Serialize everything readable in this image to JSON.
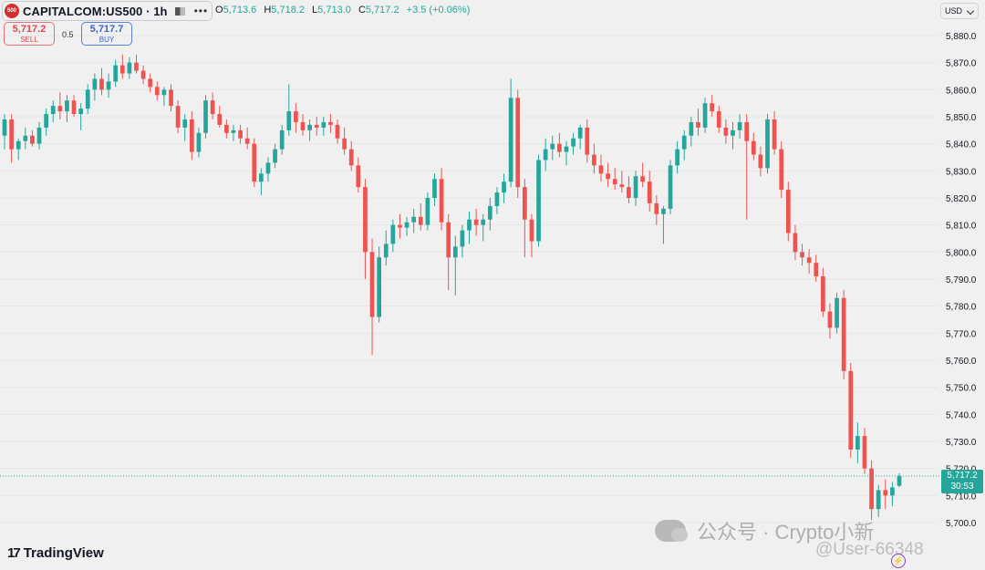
{
  "header": {
    "logo_text": "500",
    "symbol": "CAPITALCOM:US500 · 1h",
    "more": "•••",
    "ohlc": {
      "o_label": "O",
      "o": "5,713.6",
      "h_label": "H",
      "h": "5,718.2",
      "l_label": "L",
      "l": "5,713.0",
      "c_label": "C",
      "c": "5,717.2",
      "change": "+3.5 (+0.06%)"
    },
    "currency": "USD"
  },
  "trade": {
    "sell_price": "5,717.2",
    "sell_label": "SELL",
    "spread": "0.5",
    "buy_price": "5,717.7",
    "buy_label": "BUY"
  },
  "last_price": {
    "price": "5,717.2",
    "countdown": "30:53"
  },
  "branding": {
    "tradingview": "TradingView",
    "watermark": "公众号 · Crypto小新",
    "watermark2": "@User-66348"
  },
  "colors": {
    "up": "#26a69a",
    "down": "#ef5350",
    "background": "#f0f0f0",
    "marker": "#2962ff",
    "lightning": "#8e44ad"
  },
  "chart_data": {
    "type": "candlestick",
    "timeframe": "1h",
    "symbol": "CAPITALCOM:US500",
    "ylim": [
      5695,
      5885
    ],
    "y_ticks": [
      5700,
      5710,
      5720,
      5730,
      5740,
      5750,
      5760,
      5770,
      5780,
      5790,
      5800,
      5810,
      5820,
      5830,
      5840,
      5850,
      5860,
      5870,
      5880
    ],
    "y_tick_labels": [
      "5,700.0",
      "5,710.0",
      "5,720.0",
      "5,730.0",
      "5,740.0",
      "5,750.0",
      "5,760.0",
      "5,770.0",
      "5,780.0",
      "5,790.0",
      "5,800.0",
      "5,810.0",
      "5,820.0",
      "5,830.0",
      "5,840.0",
      "5,850.0",
      "5,860.0",
      "5,870.0",
      "5,880.0"
    ],
    "last_price": 5717.2,
    "candles": [
      [
        5843,
        5851,
        5838,
        5849
      ],
      [
        5849,
        5851,
        5833,
        5838
      ],
      [
        5838,
        5842,
        5834,
        5841
      ],
      [
        5841,
        5846,
        5838,
        5843
      ],
      [
        5843,
        5845,
        5839,
        5840
      ],
      [
        5840,
        5848,
        5838,
        5846
      ],
      [
        5846,
        5853,
        5843,
        5851
      ],
      [
        5851,
        5856,
        5848,
        5854
      ],
      [
        5854,
        5859,
        5849,
        5852
      ],
      [
        5852,
        5858,
        5848,
        5856
      ],
      [
        5856,
        5858,
        5850,
        5851
      ],
      [
        5851,
        5855,
        5845,
        5853
      ],
      [
        5853,
        5862,
        5851,
        5860
      ],
      [
        5860,
        5866,
        5856,
        5864
      ],
      [
        5864,
        5868,
        5858,
        5860
      ],
      [
        5860,
        5866,
        5857,
        5863
      ],
      [
        5863,
        5871,
        5861,
        5869
      ],
      [
        5869,
        5873,
        5864,
        5866
      ],
      [
        5866,
        5872,
        5864,
        5870
      ],
      [
        5870,
        5873,
        5866,
        5867
      ],
      [
        5867,
        5869,
        5862,
        5864
      ],
      [
        5864,
        5866,
        5859,
        5861
      ],
      [
        5861,
        5863,
        5856,
        5858
      ],
      [
        5858,
        5861,
        5854,
        5860
      ],
      [
        5860,
        5862,
        5852,
        5854
      ],
      [
        5854,
        5856,
        5844,
        5846
      ],
      [
        5846,
        5851,
        5841,
        5849
      ],
      [
        5849,
        5852,
        5834,
        5837
      ],
      [
        5837,
        5846,
        5835,
        5844
      ],
      [
        5844,
        5858,
        5842,
        5856
      ],
      [
        5856,
        5859,
        5849,
        5851
      ],
      [
        5851,
        5854,
        5846,
        5847
      ],
      [
        5847,
        5849,
        5842,
        5844
      ],
      [
        5844,
        5847,
        5841,
        5845
      ],
      [
        5845,
        5847,
        5840,
        5842
      ],
      [
        5842,
        5846,
        5838,
        5840
      ],
      [
        5840,
        5842,
        5824,
        5826
      ],
      [
        5826,
        5831,
        5821,
        5829
      ],
      [
        5829,
        5835,
        5826,
        5833
      ],
      [
        5833,
        5840,
        5831,
        5838
      ],
      [
        5838,
        5847,
        5836,
        5845
      ],
      [
        5845,
        5862,
        5843,
        5852
      ],
      [
        5852,
        5855,
        5844,
        5848
      ],
      [
        5848,
        5851,
        5843,
        5845
      ],
      [
        5845,
        5849,
        5841,
        5847
      ],
      [
        5847,
        5850,
        5843,
        5846
      ],
      [
        5846,
        5850,
        5843,
        5848
      ],
      [
        5848,
        5851,
        5844,
        5847
      ],
      [
        5847,
        5849,
        5840,
        5842
      ],
      [
        5842,
        5846,
        5836,
        5838
      ],
      [
        5838,
        5841,
        5830,
        5832
      ],
      [
        5832,
        5835,
        5822,
        5824
      ],
      [
        5824,
        5827,
        5790,
        5800
      ],
      [
        5800,
        5805,
        5762,
        5776
      ],
      [
        5776,
        5802,
        5774,
        5798
      ],
      [
        5798,
        5808,
        5795,
        5803
      ],
      [
        5803,
        5812,
        5800,
        5810
      ],
      [
        5810,
        5814,
        5805,
        5809
      ],
      [
        5809,
        5813,
        5806,
        5811
      ],
      [
        5811,
        5816,
        5807,
        5813
      ],
      [
        5813,
        5818,
        5808,
        5810
      ],
      [
        5810,
        5822,
        5808,
        5820
      ],
      [
        5820,
        5829,
        5817,
        5827
      ],
      [
        5827,
        5831,
        5808,
        5811
      ],
      [
        5811,
        5814,
        5786,
        5798
      ],
      [
        5798,
        5806,
        5784,
        5802
      ],
      [
        5802,
        5810,
        5798,
        5808
      ],
      [
        5808,
        5815,
        5803,
        5812
      ],
      [
        5812,
        5816,
        5806,
        5810
      ],
      [
        5810,
        5814,
        5804,
        5812
      ],
      [
        5812,
        5820,
        5808,
        5817
      ],
      [
        5817,
        5824,
        5814,
        5822
      ],
      [
        5822,
        5829,
        5818,
        5826
      ],
      [
        5826,
        5864,
        5824,
        5857
      ],
      [
        5857,
        5860,
        5820,
        5824
      ],
      [
        5824,
        5827,
        5798,
        5812
      ],
      [
        5812,
        5814,
        5798,
        5804
      ],
      [
        5804,
        5836,
        5802,
        5834
      ],
      [
        5834,
        5842,
        5830,
        5838
      ],
      [
        5838,
        5843,
        5834,
        5840
      ],
      [
        5840,
        5844,
        5835,
        5837
      ],
      [
        5837,
        5841,
        5832,
        5839
      ],
      [
        5839,
        5844,
        5836,
        5842
      ],
      [
        5842,
        5847,
        5838,
        5846
      ],
      [
        5846,
        5849,
        5833,
        5836
      ],
      [
        5836,
        5840,
        5829,
        5832
      ],
      [
        5832,
        5836,
        5826,
        5829
      ],
      [
        5829,
        5833,
        5824,
        5827
      ],
      [
        5827,
        5831,
        5823,
        5825
      ],
      [
        5825,
        5830,
        5822,
        5824
      ],
      [
        5824,
        5828,
        5818,
        5820
      ],
      [
        5820,
        5830,
        5817,
        5828
      ],
      [
        5828,
        5833,
        5824,
        5826
      ],
      [
        5826,
        5830,
        5815,
        5818
      ],
      [
        5818,
        5821,
        5810,
        5814
      ],
      [
        5814,
        5817,
        5803,
        5816
      ],
      [
        5816,
        5834,
        5814,
        5832
      ],
      [
        5832,
        5841,
        5829,
        5838
      ],
      [
        5838,
        5845,
        5834,
        5843
      ],
      [
        5843,
        5850,
        5839,
        5848
      ],
      [
        5848,
        5853,
        5843,
        5846
      ],
      [
        5846,
        5857,
        5844,
        5855
      ],
      [
        5855,
        5858,
        5850,
        5852
      ],
      [
        5852,
        5854,
        5844,
        5846
      ],
      [
        5846,
        5849,
        5840,
        5843
      ],
      [
        5843,
        5848,
        5838,
        5845
      ],
      [
        5845,
        5851,
        5842,
        5848
      ],
      [
        5848,
        5851,
        5812,
        5841
      ],
      [
        5841,
        5844,
        5834,
        5836
      ],
      [
        5836,
        5839,
        5828,
        5831
      ],
      [
        5831,
        5851,
        5829,
        5849
      ],
      [
        5849,
        5852,
        5836,
        5838
      ],
      [
        5838,
        5841,
        5820,
        5823
      ],
      [
        5823,
        5826,
        5804,
        5807
      ],
      [
        5807,
        5810,
        5797,
        5800
      ],
      [
        5800,
        5803,
        5795,
        5798
      ],
      [
        5798,
        5801,
        5792,
        5796
      ],
      [
        5796,
        5799,
        5789,
        5791
      ],
      [
        5791,
        5794,
        5776,
        5778
      ],
      [
        5778,
        5781,
        5768,
        5772
      ],
      [
        5772,
        5785,
        5770,
        5783
      ],
      [
        5783,
        5786,
        5753,
        5756
      ],
      [
        5756,
        5759,
        5724,
        5727
      ],
      [
        5727,
        5737,
        5722,
        5732
      ],
      [
        5732,
        5735,
        5718,
        5720
      ],
      [
        5720,
        5723,
        5701,
        5705
      ],
      [
        5705,
        5714,
        5702,
        5712
      ],
      [
        5712,
        5716,
        5705,
        5710
      ],
      [
        5710,
        5715,
        5706,
        5713
      ],
      [
        5713.6,
        5718.2,
        5713.0,
        5717.2
      ]
    ]
  }
}
